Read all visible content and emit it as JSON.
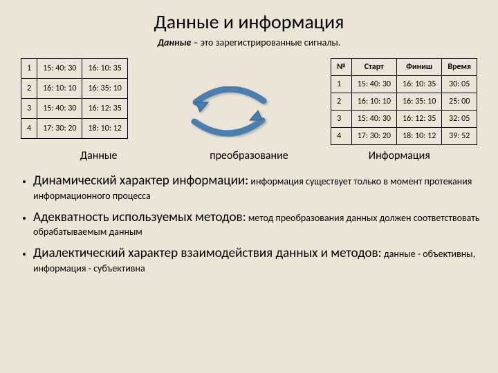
{
  "title": "Данные и информация",
  "subtitle_lead": "Данные",
  "subtitle_rest": " – это зарегистрированные сигналы.",
  "left_table": {
    "rows": [
      [
        "1",
        "15: 40: 30",
        "16: 10: 35"
      ],
      [
        "2",
        "16: 10: 10",
        "16: 35: 10"
      ],
      [
        "3",
        "15: 40: 30",
        "16: 12: 35"
      ],
      [
        "4",
        "17: 30: 20",
        "18: 10: 12"
      ]
    ]
  },
  "right_table": {
    "headers": [
      "№",
      "Старт",
      "Финиш",
      "Время"
    ],
    "rows": [
      [
        "1",
        "15: 40: 30",
        "16: 10: 35",
        "30: 05"
      ],
      [
        "2",
        "16: 10: 10",
        "16: 35: 10",
        "25: 00"
      ],
      [
        "3",
        "15: 40: 30",
        "16: 12: 35",
        "32: 05"
      ],
      [
        "4",
        "17: 30: 20",
        "18: 10: 12",
        "39: 52"
      ]
    ]
  },
  "caption_left": "Данные",
  "caption_mid": "преобразование",
  "caption_right": "Информация",
  "arrow_color": "#4a7fb0",
  "arrow_border": "#2f5a85",
  "bullets": [
    {
      "lead": "Динамический характер информации:",
      "rest": " информация существует только в момент  протекания информационного процесса"
    },
    {
      "lead": "Адекватность используемых методов:",
      "rest": " метод преобразования данных должен соответствовать обрабатываемым данным"
    },
    {
      "lead": "Диалектический характер взаимодействия данных и методов:",
      "rest": " данные - объективны,  информация - субъективна"
    }
  ]
}
